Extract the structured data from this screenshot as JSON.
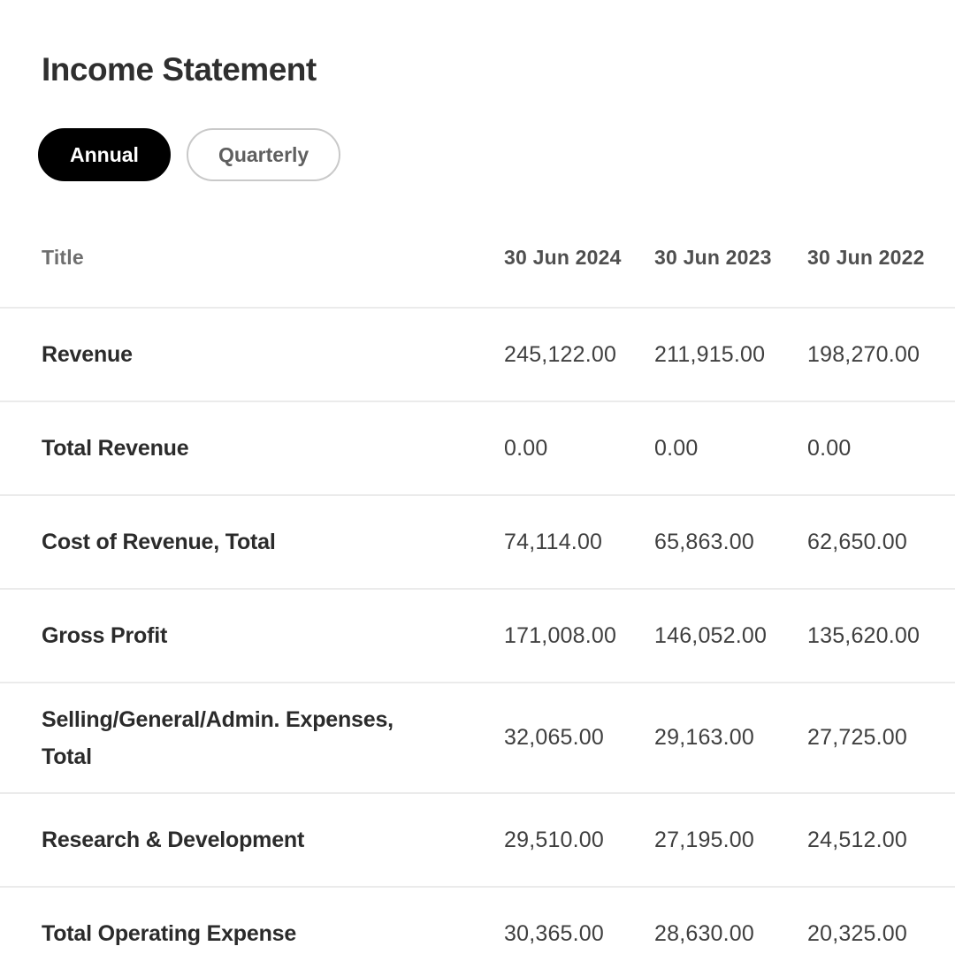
{
  "page": {
    "title": "Income Statement"
  },
  "period_toggle": {
    "options": [
      {
        "label": "Annual",
        "selected": true
      },
      {
        "label": "Quarterly",
        "selected": false
      }
    ]
  },
  "table": {
    "columns": [
      "Title",
      "30 Jun 2024",
      "30 Jun 2023",
      "30 Jun 2022"
    ],
    "rows": [
      {
        "title": "Revenue",
        "values": [
          "245,122.00",
          "211,915.00",
          "198,270.00"
        ]
      },
      {
        "title": "Total Revenue",
        "values": [
          "0.00",
          "0.00",
          "0.00"
        ]
      },
      {
        "title": "Cost of Revenue, Total",
        "values": [
          "74,114.00",
          "65,863.00",
          "62,650.00"
        ]
      },
      {
        "title": "Gross Profit",
        "values": [
          "171,008.00",
          "146,052.00",
          "135,620.00"
        ]
      },
      {
        "title": "Selling/General/Admin. Expenses, Total",
        "values": [
          "32,065.00",
          "29,163.00",
          "27,725.00"
        ]
      },
      {
        "title": "Research & Development",
        "values": [
          "29,510.00",
          "27,195.00",
          "24,512.00"
        ]
      },
      {
        "title": "Total Operating Expense",
        "values": [
          "30,365.00",
          "28,630.00",
          "20,325.00"
        ]
      }
    ]
  },
  "colors": {
    "background": "#ffffff",
    "active_pill_bg": "#000000",
    "active_pill_text": "#ffffff",
    "inactive_pill_border": "#c9c9c9",
    "inactive_pill_text": "#5f5f5f",
    "heading_text": "#2f2f2f",
    "column_header_text": "#4f4f4f",
    "title_column_header_text": "#6e6e6e",
    "row_label_text": "#2b2b2b",
    "row_value_text": "#3f3f3f",
    "divider": "#ebebeb"
  }
}
